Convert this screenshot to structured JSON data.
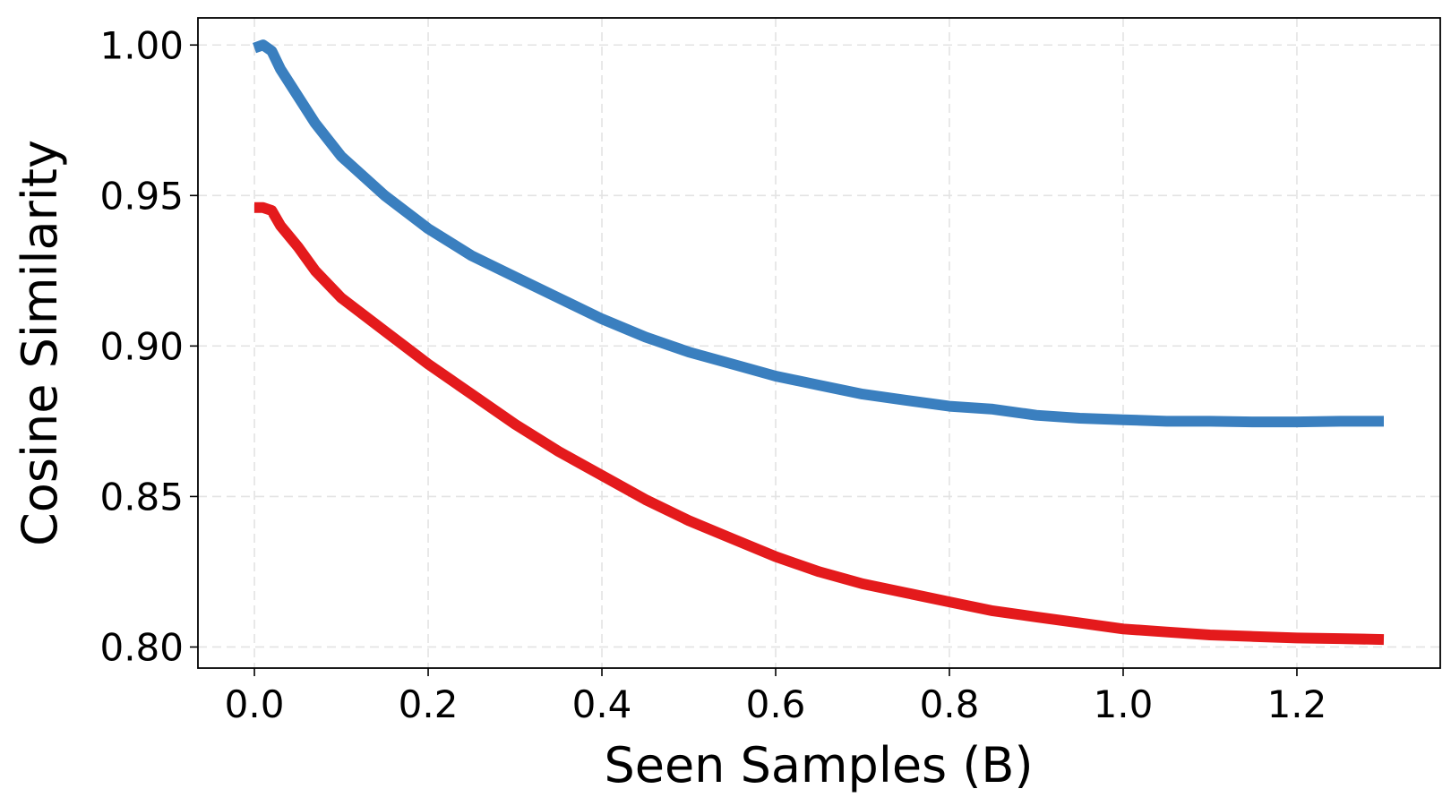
{
  "chart_data": {
    "type": "line",
    "title": "",
    "xlabel": "Seen Samples (B)",
    "ylabel": "Cosine Similarity",
    "xlim": [
      -0.065,
      1.365
    ],
    "ylim": [
      0.793,
      1.009
    ],
    "xticks": [
      0.0,
      0.2,
      0.4,
      0.6,
      0.8,
      1.0,
      1.2
    ],
    "xtick_labels": [
      "0.0",
      "0.2",
      "0.4",
      "0.6",
      "0.8",
      "1.0",
      "1.2"
    ],
    "yticks": [
      0.8,
      0.85,
      0.9,
      0.95,
      1.0
    ],
    "ytick_labels": [
      "0.80",
      "0.85",
      "0.90",
      "0.95",
      "1.00"
    ],
    "grid": true,
    "legend": null,
    "series": [
      {
        "color": "#3a7fbf",
        "x": [
          0.0,
          0.01,
          0.02,
          0.03,
          0.05,
          0.07,
          0.1,
          0.15,
          0.2,
          0.25,
          0.3,
          0.35,
          0.4,
          0.45,
          0.5,
          0.55,
          0.6,
          0.65,
          0.7,
          0.75,
          0.8,
          0.85,
          0.9,
          0.95,
          1.0,
          1.05,
          1.1,
          1.15,
          1.2,
          1.25,
          1.3
        ],
        "y": [
          0.999,
          1.0,
          0.998,
          0.992,
          0.983,
          0.974,
          0.963,
          0.95,
          0.939,
          0.93,
          0.923,
          0.916,
          0.909,
          0.903,
          0.898,
          0.894,
          0.89,
          0.887,
          0.884,
          0.882,
          0.88,
          0.879,
          0.877,
          0.876,
          0.8755,
          0.875,
          0.875,
          0.8748,
          0.8748,
          0.875,
          0.875
        ]
      },
      {
        "color": "#e41a1c",
        "x": [
          0.0,
          0.01,
          0.02,
          0.03,
          0.05,
          0.07,
          0.1,
          0.15,
          0.2,
          0.25,
          0.3,
          0.35,
          0.4,
          0.45,
          0.5,
          0.55,
          0.6,
          0.65,
          0.7,
          0.75,
          0.8,
          0.85,
          0.9,
          0.95,
          1.0,
          1.05,
          1.1,
          1.15,
          1.2,
          1.25,
          1.3
        ],
        "y": [
          0.946,
          0.946,
          0.945,
          0.94,
          0.933,
          0.925,
          0.916,
          0.905,
          0.894,
          0.884,
          0.874,
          0.865,
          0.857,
          0.849,
          0.842,
          0.836,
          0.83,
          0.825,
          0.821,
          0.818,
          0.815,
          0.812,
          0.81,
          0.808,
          0.806,
          0.805,
          0.804,
          0.8035,
          0.803,
          0.8028,
          0.8025
        ]
      }
    ]
  }
}
